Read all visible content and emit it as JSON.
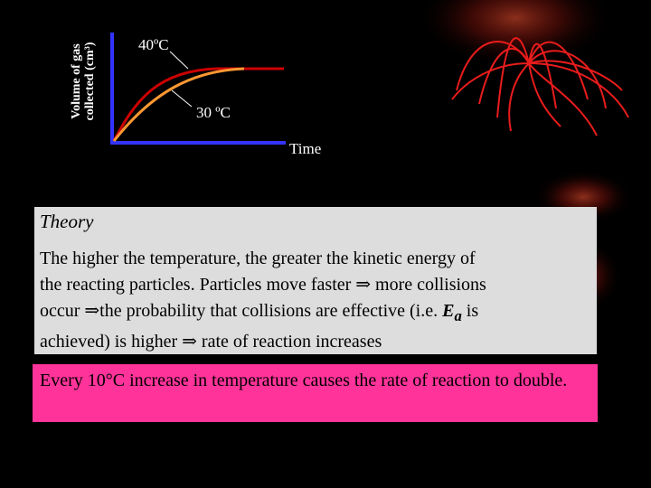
{
  "graph": {
    "y_axis_label_line1": "Volume of gas",
    "y_axis_label_line2": "collected (cm³)",
    "x_axis_label": "Time",
    "curve_label_hot": "40ºC",
    "curve_label_cool": "30 ºC",
    "colors": {
      "axes": "#3333ff",
      "curve_hot": "#cc0000",
      "curve_cool": "#ff9933"
    }
  },
  "theory": {
    "title": "Theory",
    "line1": "The higher the temperature, the greater the kinetic energy of",
    "line2": "the reacting particles. Particles move faster ⇒ more collisions",
    "line3_a": "occur ⇒the probability that collisions are effective (i.e. ",
    "line3_sym": "E",
    "line3_sub": "a",
    "line3_b": " is",
    "line4": "achieved) is higher ⇒ rate of reaction increases",
    "background": "#dddddd"
  },
  "rule": {
    "text": "Every 10°C increase in  temperature causes the rate of reaction to double.",
    "background": "#ff3399"
  }
}
